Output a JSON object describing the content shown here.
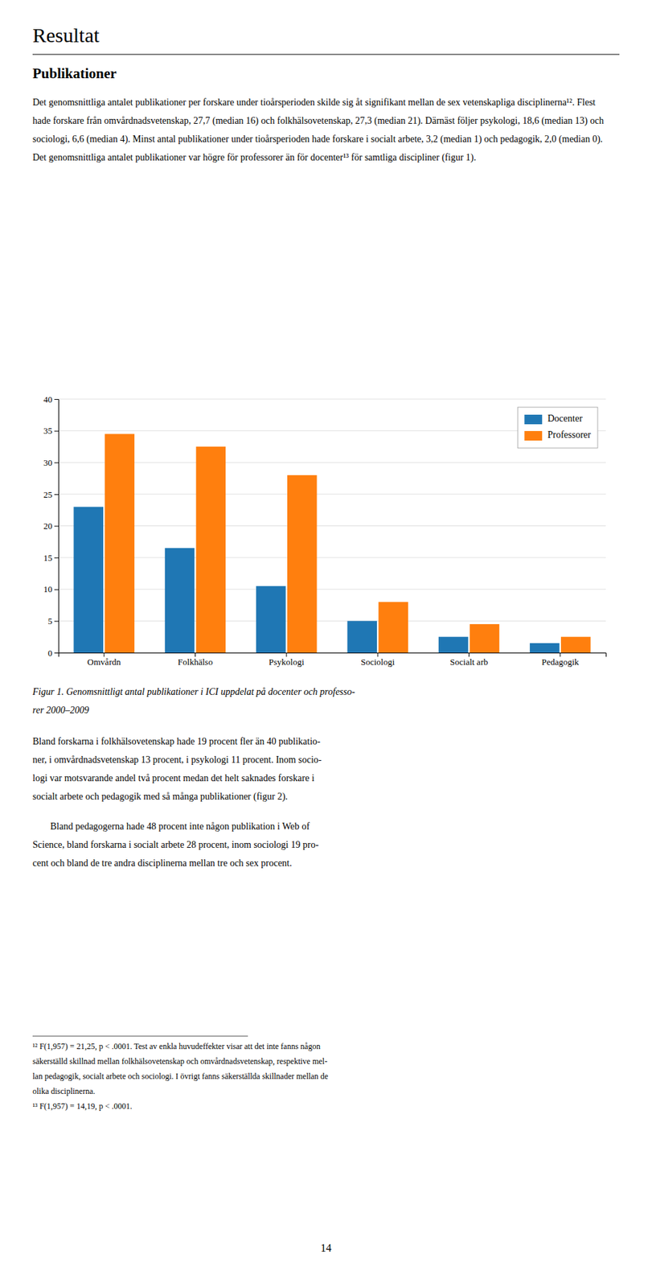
{
  "title": "Resultat",
  "section_title": "Publikationer",
  "body_text_lines": [
    "Det genomsnittliga antalet publikationer per forskare under tioårsperioden skilde sig åt signifikant mellan de sex vetenskapliga disciplinerna¹². Flest",
    "hade forskare från omvårdnadsvetenskap, 27,7 (median 16) och folkhälsovetenskap, 27,3 (median 21). Därnäst följer psykologi, 18,6 (median 13) och",
    "sociologi, 6,6 (median 4). Minst antal publikationer under tioårsperioden hade forskare i socialt arbete, 3,2 (median 1) och pedagogik, 2,0 (median 0).",
    "Det genomsnittliga antalet publikationer var högre för professorer än för docenter¹³ för samtliga discipliner (figur 1)."
  ],
  "fig_caption_lines": [
    "Figur 1. Genomsnittligt antal publikationer i ICI uppdelat på docenter och professo-",
    "rer 2000–2009"
  ],
  "body_text2_lines": [
    "Bland forskarna i folkhälsovetenskap hade 19 procent fler än 40 publikatio-",
    "ner, i omvårdnadsvetenskap 13 procent, i psykologi 11 procent. Inom socio-",
    "logi var motsvarande andel två procent medan det helt saknades forskare i",
    "socialt arbete och pedagogik med så många publikationer (figur 2)."
  ],
  "body_text3_lines": [
    "Bland pedagogerna hade 48 procent inte någon publikation i Web of",
    "Science, bland forskarna i socialt arbete 28 procent, inom sociologi 19 pro-",
    "cent och bland de tre andra disciplinerna mellan tre och sex procent."
  ],
  "footnote1_lines": [
    "¹² F(1,957) = 21,25, p < .0001. Test av enkla huvudeffekter visar att det inte fanns någon",
    "säkerställd skillnad mellan folkhälsovetenskap och omvårdnadsvetenskap, respektive mel-",
    "lan pedagogik, socialt arbete och sociologi. I övrigt fanns säkerställda skillnader mellan de",
    "olika disciplinerna."
  ],
  "footnote2": "¹³ F(1,957) = 14,19, p < .0001.",
  "page_number": "14",
  "chart_data": {
    "type": "bar",
    "categories": [
      "Omvårdn",
      "Folkhälso",
      "Psykologi",
      "Sociologi",
      "Socialt arb",
      "Pedagogik"
    ],
    "series": [
      {
        "name": "Docenter",
        "values": [
          23.0,
          16.5,
          10.5,
          5.0,
          2.5,
          1.5
        ]
      },
      {
        "name": "Professorer",
        "values": [
          34.5,
          32.5,
          28.0,
          8.0,
          4.5,
          2.5
        ]
      }
    ],
    "ylim": [
      0,
      40
    ],
    "yticks": [
      0,
      5,
      10,
      15,
      20,
      25,
      30,
      35,
      40
    ],
    "grid": true,
    "legend": "upper right"
  }
}
